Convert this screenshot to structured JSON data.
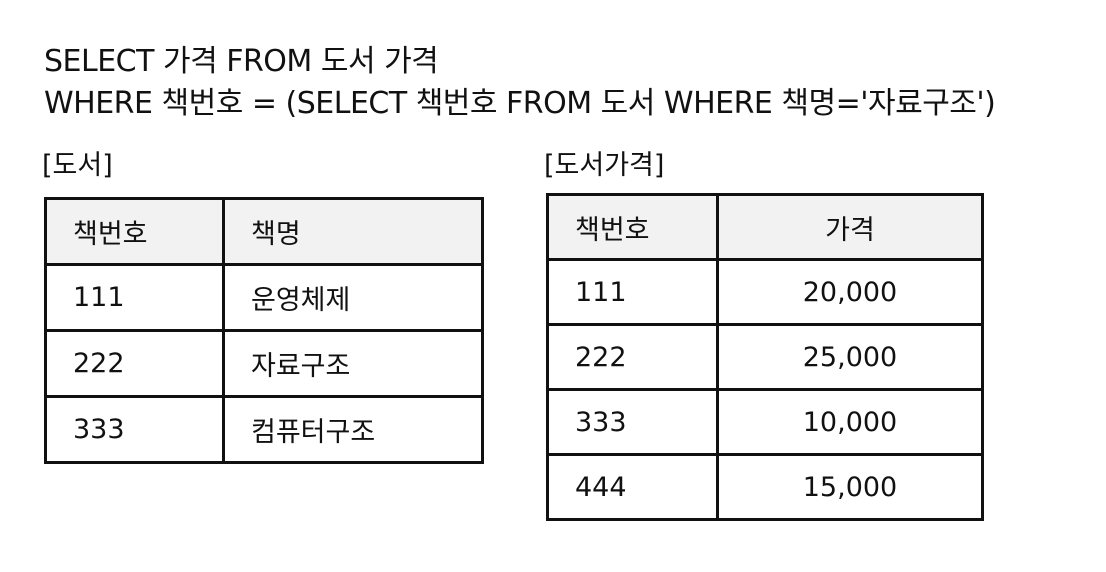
{
  "sql": {
    "line1": "SELECT 가격 FROM 도서 가격",
    "line2": "WHERE 책번호 = (SELECT 책번호 FROM 도서 WHERE 책명='자료구조')"
  },
  "books_table": {
    "caption": "[도서]",
    "headers": [
      "책번호",
      "책명"
    ],
    "rows": [
      [
        "111",
        "운영체제"
      ],
      [
        "222",
        "자료구조"
      ],
      [
        "333",
        "컴퓨터구조"
      ]
    ]
  },
  "prices_table": {
    "caption": "[도서가격]",
    "headers": [
      "책번호",
      "가격"
    ],
    "rows": [
      [
        "111",
        "20,000"
      ],
      [
        "222",
        "25,000"
      ],
      [
        "333",
        "10,000"
      ],
      [
        "444",
        "15,000"
      ]
    ]
  }
}
